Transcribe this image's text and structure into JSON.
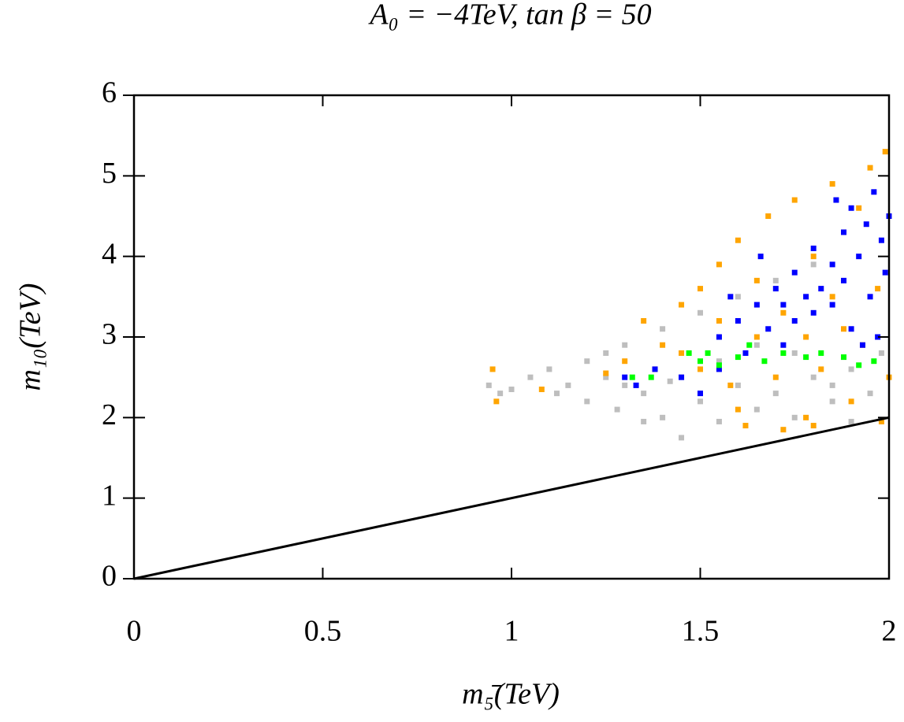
{
  "chart_data": {
    "type": "scatter",
    "title": "A₀ = −4TeV, tan β = 50",
    "xlabel": "m₅̄(TeV)",
    "ylabel": "m₁₀(TeV)",
    "xlim": [
      0,
      2
    ],
    "xticks": [
      0,
      0.5,
      1,
      1.5,
      2
    ],
    "ylim": [
      0,
      6
    ],
    "yticks": [
      0,
      1,
      2,
      3,
      4,
      5,
      6
    ],
    "series": [
      {
        "color": "#bebebe",
        "mode": "points",
        "x": [
          0.94,
          0.97,
          1.0,
          1.05,
          1.1,
          1.12,
          1.15,
          1.2,
          1.2,
          1.25,
          1.28,
          1.3,
          1.35,
          1.4,
          1.4,
          1.45,
          1.5,
          1.5,
          1.55,
          1.6,
          1.6,
          1.65,
          1.7,
          1.7,
          1.75,
          1.8,
          1.8,
          1.85,
          1.9,
          1.9,
          1.95,
          1.98,
          1.35,
          1.45,
          1.25,
          1.55,
          1.65,
          1.75,
          1.85,
          1.3,
          1.42
        ],
        "values": [
          2.4,
          2.3,
          2.35,
          2.5,
          2.6,
          2.3,
          2.4,
          2.7,
          2.2,
          2.5,
          2.1,
          2.9,
          2.3,
          2.0,
          3.1,
          2.5,
          2.2,
          3.3,
          1.95,
          2.4,
          3.5,
          2.1,
          2.3,
          3.7,
          2.0,
          2.5,
          3.9,
          2.2,
          2.6,
          1.95,
          2.3,
          2.8,
          1.95,
          1.75,
          2.8,
          2.7,
          2.9,
          2.8,
          2.4,
          2.4,
          2.45
        ]
      },
      {
        "color": "#ffa500",
        "mode": "points",
        "x": [
          0.95,
          0.96,
          1.08,
          1.25,
          1.3,
          1.35,
          1.4,
          1.45,
          1.5,
          1.5,
          1.55,
          1.6,
          1.6,
          1.65,
          1.68,
          1.7,
          1.72,
          1.75,
          1.78,
          1.8,
          1.82,
          1.85,
          1.88,
          1.9,
          1.92,
          1.95,
          1.97,
          1.99,
          2.0,
          1.98,
          1.62,
          1.72,
          1.55,
          1.45,
          1.38,
          1.65,
          1.85,
          1.93,
          1.78,
          1.58,
          1.88,
          1.8
        ],
        "values": [
          2.6,
          2.2,
          2.35,
          2.55,
          2.7,
          3.2,
          2.9,
          3.4,
          3.6,
          2.6,
          3.9,
          4.2,
          2.1,
          3.0,
          4.5,
          2.5,
          3.3,
          4.7,
          2.0,
          4.0,
          2.6,
          4.9,
          3.1,
          2.2,
          4.6,
          5.1,
          3.6,
          5.3,
          2.5,
          1.95,
          1.9,
          1.85,
          3.2,
          2.8,
          2.6,
          3.7,
          3.5,
          2.9,
          3.0,
          2.4,
          4.3,
          1.9
        ]
      },
      {
        "color": "#0000ff",
        "mode": "points",
        "x": [
          1.3,
          1.33,
          1.38,
          1.45,
          1.5,
          1.55,
          1.55,
          1.6,
          1.62,
          1.65,
          1.68,
          1.7,
          1.72,
          1.75,
          1.75,
          1.78,
          1.8,
          1.8,
          1.82,
          1.85,
          1.85,
          1.88,
          1.88,
          1.9,
          1.9,
          1.92,
          1.94,
          1.95,
          1.96,
          1.98,
          1.99,
          2.0,
          1.97,
          1.93,
          1.72,
          1.66,
          1.58,
          1.86
        ],
        "values": [
          2.5,
          2.4,
          2.6,
          2.5,
          2.3,
          2.6,
          3.0,
          3.2,
          2.8,
          3.4,
          3.1,
          3.6,
          3.4,
          3.8,
          3.2,
          3.5,
          3.3,
          4.1,
          3.6,
          3.9,
          3.4,
          4.3,
          3.7,
          4.6,
          3.1,
          4.0,
          4.4,
          3.5,
          4.8,
          4.2,
          3.8,
          4.5,
          3.0,
          2.9,
          2.9,
          4.0,
          3.5,
          4.7
        ]
      },
      {
        "color": "#00ff00",
        "mode": "points",
        "x": [
          1.32,
          1.37,
          1.47,
          1.5,
          1.52,
          1.55,
          1.6,
          1.63,
          1.67,
          1.72,
          1.78,
          1.82,
          1.88,
          1.92,
          1.96
        ],
        "values": [
          2.5,
          2.5,
          2.8,
          2.7,
          2.8,
          2.65,
          2.75,
          2.9,
          2.7,
          2.8,
          2.75,
          2.8,
          2.75,
          2.65,
          2.7
        ]
      },
      {
        "color": "#000000",
        "mode": "line",
        "x": [
          0,
          2
        ],
        "values": [
          0,
          2
        ]
      }
    ]
  }
}
